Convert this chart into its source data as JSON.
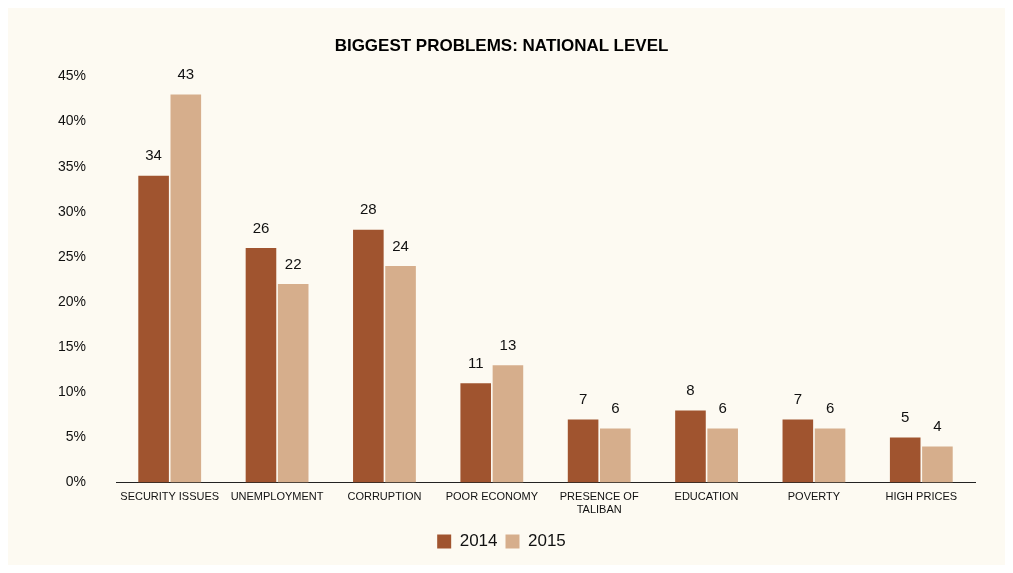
{
  "chart_data": {
    "type": "bar",
    "title": "BIGGEST PROBLEMS: NATIONAL LEVEL",
    "categories": [
      "SECURITY ISSUES",
      "UNEMPLOYMENT",
      "CORRUPTION",
      "POOR ECONOMY",
      "PRESENCE OF TALIBAN",
      "EDUCATION",
      "POVERTY",
      "HIGH PRICES"
    ],
    "series": [
      {
        "name": "2014",
        "color": "#a0542f",
        "values": [
          34,
          26,
          28,
          11,
          7,
          8,
          7,
          5
        ]
      },
      {
        "name": "2015",
        "color": "#d6ae8c",
        "values": [
          43,
          22,
          24,
          13,
          6,
          6,
          6,
          4
        ]
      }
    ],
    "ylim": [
      0,
      45
    ],
    "yticks": [
      {
        "value": 0,
        "label": "0%"
      },
      {
        "value": 5,
        "label": "5%"
      },
      {
        "value": 10,
        "label": "10%"
      },
      {
        "value": 15,
        "label": "15%"
      },
      {
        "value": 20,
        "label": "20%"
      },
      {
        "value": 25,
        "label": "25%"
      },
      {
        "value": 30,
        "label": "30%"
      },
      {
        "value": 35,
        "label": "35%"
      },
      {
        "value": 40,
        "label": "40%"
      },
      {
        "value": 45,
        "label": "45%"
      }
    ],
    "grid": false,
    "legend": "bottom",
    "data_labels": true
  }
}
